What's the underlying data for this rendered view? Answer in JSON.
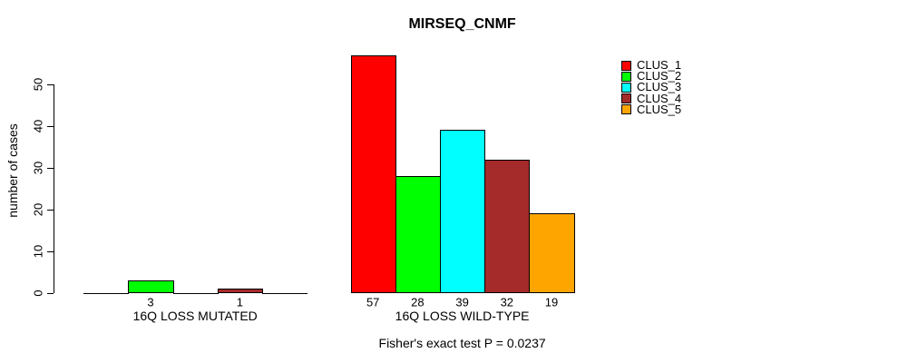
{
  "title": "MIRSEQ_CNMF",
  "ylabel": "number of cases",
  "footer": "Fisher's exact test P = 0.0237",
  "legend": [
    {
      "label": "CLUS_1",
      "color": "#FF0000"
    },
    {
      "label": "CLUS_2",
      "color": "#00FF00"
    },
    {
      "label": "CLUS_3",
      "color": "#00FFFF"
    },
    {
      "label": "CLUS_4",
      "color": "#A52A2A"
    },
    {
      "label": "CLUS_5",
      "color": "#FFA500"
    }
  ],
  "chart_data": {
    "type": "bar",
    "title": "MIRSEQ_CNMF",
    "xlabel": "",
    "ylabel": "number of cases",
    "ylim": [
      0,
      57
    ],
    "y_ticks": [
      0,
      10,
      20,
      30,
      40,
      50
    ],
    "grid": false,
    "legend_position": "top-right",
    "categories": [
      "16Q LOSS MUTATED",
      "16Q LOSS WILD-TYPE"
    ],
    "series": [
      {
        "name": "CLUS_1",
        "color": "#FF0000",
        "values": [
          0,
          57
        ]
      },
      {
        "name": "CLUS_2",
        "color": "#00FF00",
        "values": [
          3,
          28
        ]
      },
      {
        "name": "CLUS_3",
        "color": "#00FFFF",
        "values": [
          0,
          39
        ]
      },
      {
        "name": "CLUS_4",
        "color": "#A52A2A",
        "values": [
          1,
          32
        ]
      },
      {
        "name": "CLUS_5",
        "color": "#FFA500",
        "values": [
          0,
          19
        ]
      }
    ],
    "bar_value_labels_visible_when": "value > 0",
    "annotation": "Fisher's exact test P = 0.0237"
  }
}
